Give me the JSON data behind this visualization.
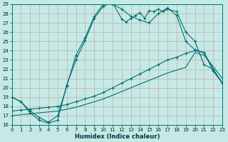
{
  "xlabel": "Humidex (Indice chaleur)",
  "xlim": [
    0,
    23
  ],
  "ylim": [
    16,
    29
  ],
  "xticks": [
    0,
    1,
    2,
    3,
    4,
    5,
    6,
    7,
    8,
    9,
    10,
    11,
    12,
    13,
    14,
    15,
    16,
    17,
    18,
    19,
    20,
    21,
    22,
    23
  ],
  "yticks": [
    16,
    17,
    18,
    19,
    20,
    21,
    22,
    23,
    24,
    25,
    26,
    27,
    28,
    29
  ],
  "bg_color": "#c5eae6",
  "grid_color": "#c8a8a8",
  "line_color": "#007070",
  "curve_a_x": [
    0,
    1,
    2,
    3,
    4,
    5,
    6,
    7,
    8,
    9,
    10,
    11,
    12,
    12.5,
    13,
    13.5,
    14,
    14.5,
    15,
    15.5,
    16,
    16.5,
    17,
    18,
    19,
    20,
    21,
    22,
    23
  ],
  "curve_a_y": [
    19.0,
    18.5,
    17.3,
    16.5,
    16.2,
    16.5,
    20.3,
    23.0,
    25.1,
    27.5,
    28.8,
    29.2,
    27.4,
    27.1,
    27.5,
    27.8,
    28.1,
    27.5,
    28.3,
    28.2,
    28.5,
    28.2,
    28.5,
    28.2,
    26.0,
    25.0,
    22.5,
    22.0,
    20.5
  ],
  "curve_b_x": [
    0,
    1,
    2,
    3,
    4,
    5,
    6,
    7,
    8,
    9,
    10,
    11,
    12,
    13,
    14,
    15,
    16,
    17,
    18,
    19,
    20,
    21,
    22,
    23
  ],
  "curve_b_y": [
    19.0,
    18.5,
    17.5,
    16.8,
    16.3,
    17.0,
    20.2,
    23.5,
    25.4,
    27.7,
    29.0,
    29.0,
    28.5,
    27.7,
    27.3,
    27.0,
    28.0,
    28.6,
    27.8,
    25.0,
    24.1,
    23.8,
    21.8,
    20.5
  ],
  "curve_c_x": [
    0,
    1,
    2,
    3,
    4,
    5,
    6,
    7,
    8,
    9,
    10,
    11,
    12,
    13,
    14,
    15,
    16,
    17,
    18,
    19,
    20,
    21,
    22,
    23
  ],
  "curve_c_y": [
    17.5,
    17.6,
    17.7,
    17.8,
    17.9,
    18.0,
    18.2,
    18.5,
    18.8,
    19.1,
    19.5,
    20.0,
    20.5,
    21.0,
    21.5,
    22.0,
    22.5,
    23.0,
    23.3,
    23.7,
    24.0,
    23.8,
    22.0,
    20.5
  ],
  "curve_d_x": [
    0,
    1,
    2,
    3,
    4,
    5,
    6,
    7,
    8,
    9,
    10,
    11,
    12,
    13,
    14,
    15,
    16,
    17,
    18,
    19,
    20,
    21,
    22,
    23
  ],
  "curve_d_y": [
    17.0,
    17.1,
    17.2,
    17.3,
    17.4,
    17.5,
    17.7,
    17.9,
    18.2,
    18.5,
    18.8,
    19.2,
    19.6,
    20.0,
    20.4,
    20.8,
    21.2,
    21.6,
    21.9,
    22.2,
    23.8,
    23.5,
    22.3,
    21.0
  ]
}
